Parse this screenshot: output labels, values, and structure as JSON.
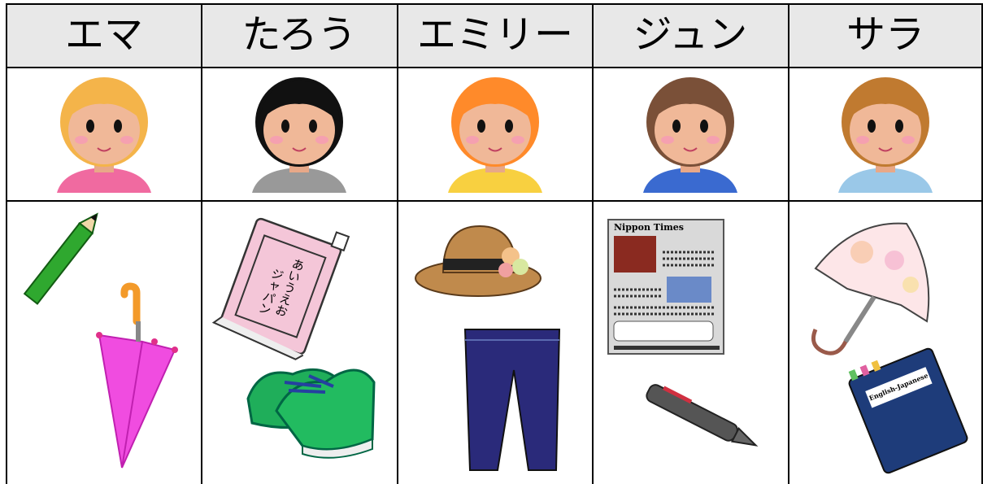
{
  "table": {
    "header": [
      "エマ",
      "たろう",
      "エミリー",
      "ジュン",
      "サラ"
    ]
  },
  "labels": {
    "book": [
      "あいうえお",
      "ジャパン"
    ],
    "newspaper": "Nippon Times",
    "dictionary": "English-Japanese"
  }
}
